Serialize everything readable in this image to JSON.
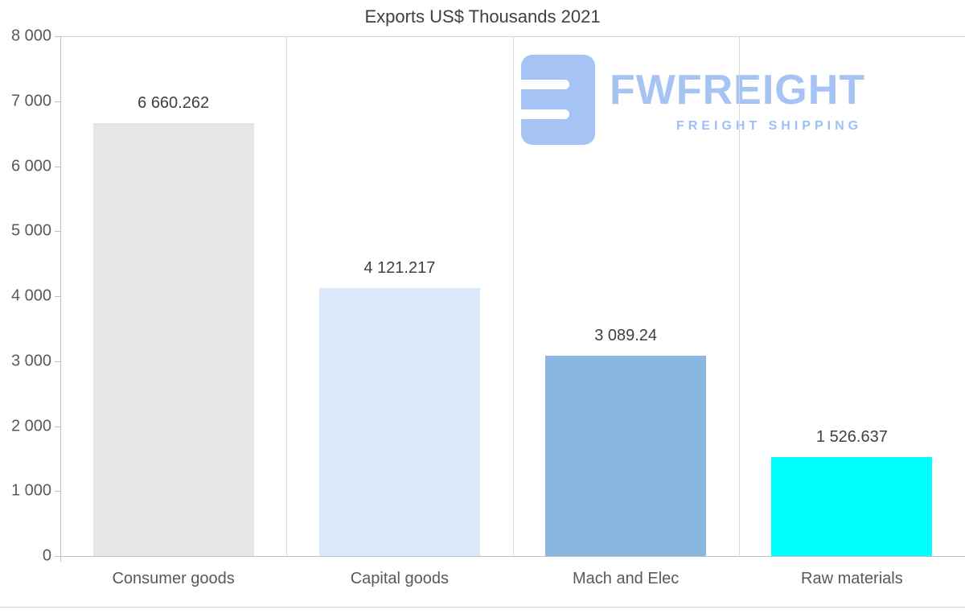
{
  "title": "Exports US$ Thousands 2021",
  "logo": {
    "name": "FWFREIGHT",
    "tagline": "FREIGHT SHIPPING",
    "color": "#a6c4f3"
  },
  "chart_data": {
    "type": "bar",
    "title": "Exports US$ Thousands 2021",
    "categories": [
      "Consumer goods",
      "Capital goods",
      "Mach and Elec",
      "Raw materials"
    ],
    "values": [
      6660.262,
      4121.217,
      3089.24,
      1526.637
    ],
    "value_labels": [
      "6 660.262",
      "4 121.217",
      "3 089.24",
      "1 526.637"
    ],
    "bar_colors": [
      "#e6e6e6",
      "#daeafb",
      "#8ab7e0",
      "#00ffff"
    ],
    "xlabel": "",
    "ylabel": "",
    "ylim": [
      0,
      8000
    ],
    "ytick_interval": 1000,
    "ytick_labels": [
      "8 000",
      "7 000",
      "6 000",
      "5 000",
      "4 000",
      "3 000",
      "2 000",
      "1 000",
      "0"
    ],
    "grid": "vertical-category-separators",
    "legend_position": "none",
    "text_color": "#404040",
    "axis_text_color": "#595959",
    "gridline_color": "#d9d9d9"
  }
}
